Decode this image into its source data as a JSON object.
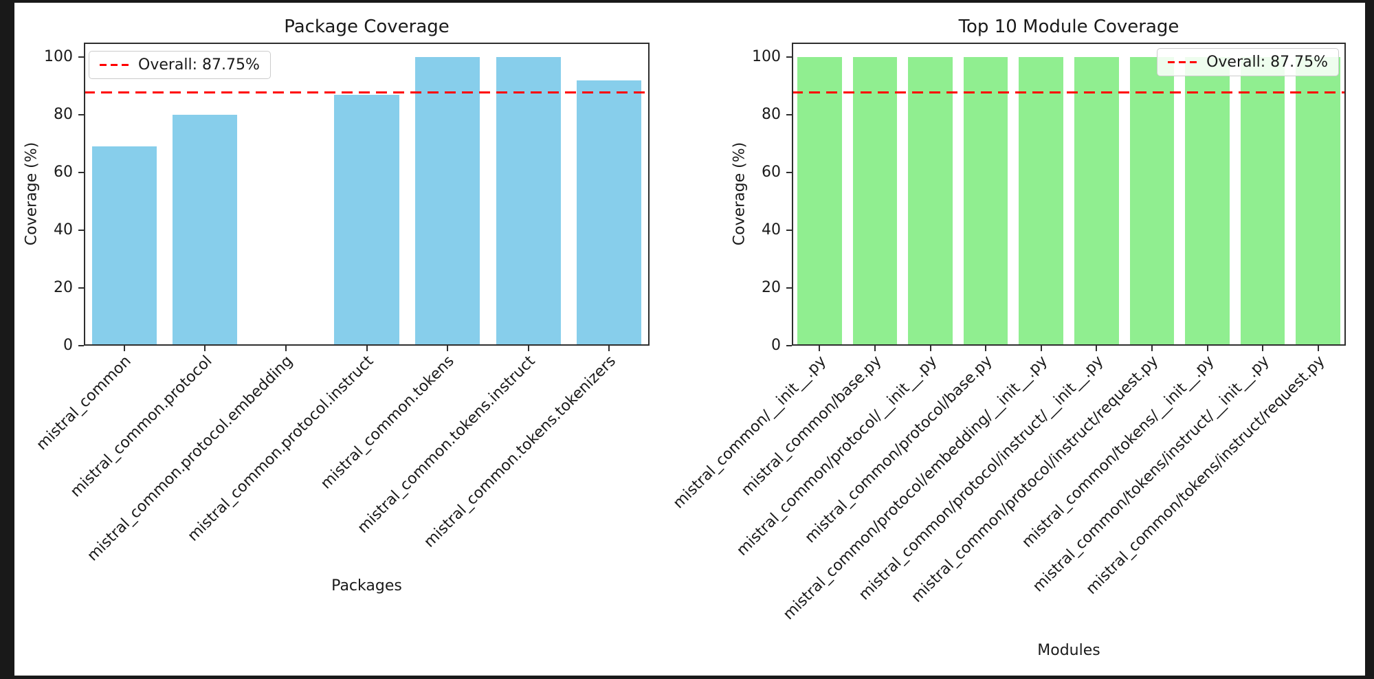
{
  "window": {
    "background": "#191919",
    "canvas_background": "#ffffff"
  },
  "overall": {
    "value": 87.75,
    "label": "Overall: 87.75%",
    "line_color": "#ff0000",
    "line_style": "dashed"
  },
  "chart_data": [
    {
      "type": "bar",
      "title": "Package Coverage",
      "xlabel": "Packages",
      "ylabel": "Coverage (%)",
      "bar_color": "#87ceeb",
      "legend_loc": "upper left",
      "legend_label": "Overall: 87.75%",
      "overall_line_value": 87.75,
      "ylim": [
        0,
        105
      ],
      "yticks": [
        0,
        20,
        40,
        60,
        80,
        100
      ],
      "grid": false,
      "categories": [
        "mistral_common",
        "mistral_common.protocol",
        "mistral_common.protocol.embedding",
        "mistral_common.protocol.instruct",
        "mistral_common.tokens",
        "mistral_common.tokens.instruct",
        "mistral_common.tokens.tokenizers"
      ],
      "values": [
        69,
        80,
        0,
        87,
        100,
        100,
        92
      ]
    },
    {
      "type": "bar",
      "title": "Top 10 Module Coverage",
      "xlabel": "Modules",
      "ylabel": "Coverage (%)",
      "bar_color": "#90ee90",
      "legend_loc": "upper right",
      "legend_label": "Overall: 87.75%",
      "overall_line_value": 87.75,
      "ylim": [
        0,
        105
      ],
      "yticks": [
        0,
        20,
        40,
        60,
        80,
        100
      ],
      "grid": false,
      "categories": [
        "mistral_common/__init__.py",
        "mistral_common/base.py",
        "mistral_common/protocol/__init__.py",
        "mistral_common/protocol/base.py",
        "mistral_common/protocol/embedding/__init__.py",
        "mistral_common/protocol/instruct/__init__.py",
        "mistral_common/protocol/instruct/request.py",
        "mistral_common/tokens/__init__.py",
        "mistral_common/tokens/instruct/__init__.py",
        "mistral_common/tokens/instruct/request.py"
      ],
      "values": [
        100,
        100,
        100,
        100,
        100,
        100,
        100,
        100,
        100,
        100
      ]
    }
  ]
}
